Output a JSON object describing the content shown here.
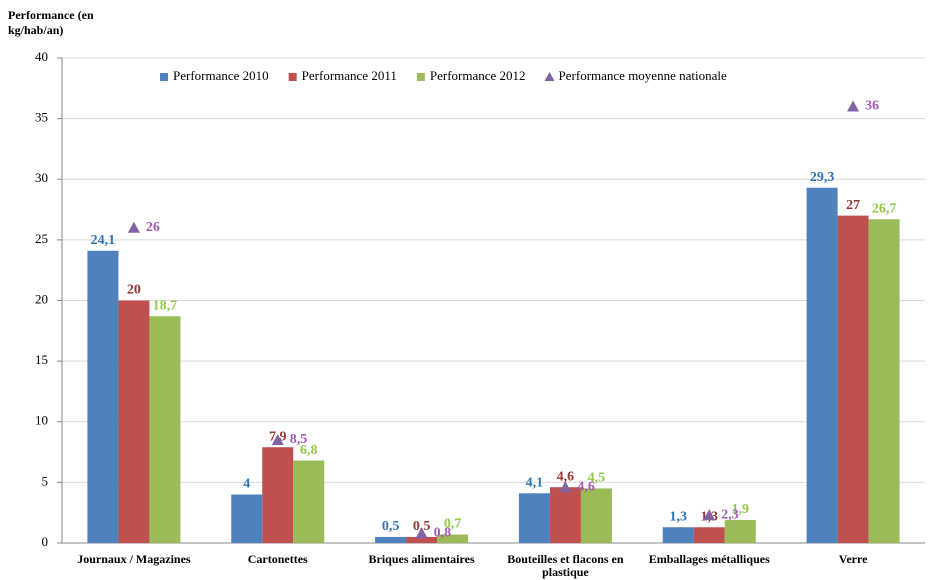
{
  "chart_data": {
    "type": "bar",
    "y_label": "Performance (en kg/hab/an)",
    "categories": [
      "Journaux / Magazines",
      "Cartonettes",
      "Briques alimentaires",
      "Bouteilles et flacons en plastique",
      "Emballages métalliques",
      "Verre"
    ],
    "series": [
      {
        "name": "Performance 2010",
        "color": "#4f81bd",
        "label_color": "#2e75b6",
        "values": [
          24.1,
          4,
          0.5,
          4.1,
          1.3,
          29.3
        ],
        "value_labels": [
          "24,1",
          "4",
          "0,5",
          "4,1",
          "1,3",
          "29,3"
        ]
      },
      {
        "name": "Performance 2011",
        "color": "#c0504d",
        "label_color": "#953735",
        "values": [
          20,
          7.9,
          0.5,
          4.6,
          1.3,
          27
        ],
        "value_labels": [
          "20",
          "7,9",
          "0,5",
          "4,6",
          "1,3",
          "27"
        ]
      },
      {
        "name": "Performance 2012",
        "color": "#9bbb59",
        "label_color": "#92c84a",
        "values": [
          18.7,
          6.8,
          0.7,
          4.5,
          1.9,
          26.7
        ],
        "value_labels": [
          "18,7",
          "6,8",
          "0,7",
          "4,5",
          "1,9",
          "26,7"
        ]
      },
      {
        "name": "Performance moyenne nationale",
        "type": "scatter",
        "marker": "triangle",
        "color": "#8064a2",
        "label_color": "#a05bb0",
        "values": [
          26,
          8.5,
          0.8,
          4.6,
          2.3,
          36
        ],
        "value_labels": [
          "26",
          "8,5",
          "0,8",
          "4,6",
          "2,3",
          "36"
        ]
      }
    ],
    "ylim": [
      0,
      40
    ],
    "yticks": [
      0,
      5,
      10,
      15,
      20,
      25,
      30,
      35,
      40
    ],
    "grid": true,
    "legend": "top"
  }
}
